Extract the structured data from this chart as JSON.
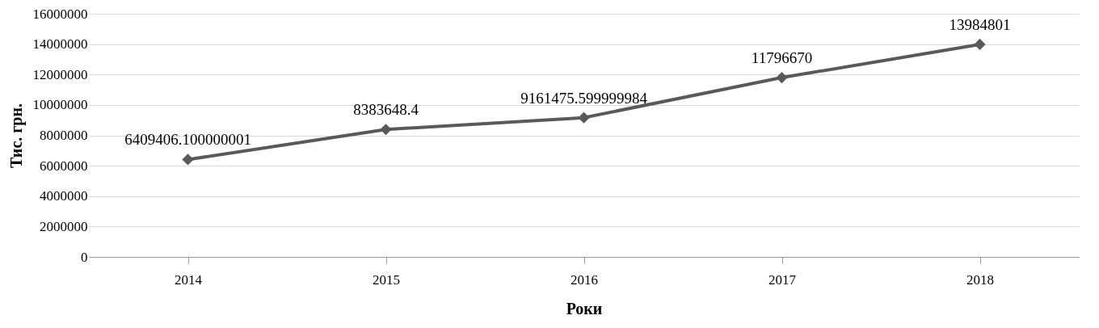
{
  "chart_data": {
    "type": "line",
    "xlabel": "Роки",
    "ylabel": "Тис. грн.",
    "categories": [
      "2014",
      "2015",
      "2016",
      "2017",
      "2018"
    ],
    "series": [
      {
        "color": "#595959",
        "values": [
          6409406.100000001,
          8383648.4,
          9161475.599999985,
          11796670,
          13984801
        ],
        "value_labels": [
          "6409406.100000001",
          "8383648.4",
          "9161475.599999984",
          "11796670",
          "13984801"
        ]
      }
    ],
    "ylim": [
      0,
      16000000
    ],
    "yticks": [
      0,
      2000000,
      4000000,
      6000000,
      8000000,
      10000000,
      12000000,
      14000000,
      16000000
    ],
    "grid": "y",
    "marker": "diamond",
    "line_style": "solid"
  }
}
